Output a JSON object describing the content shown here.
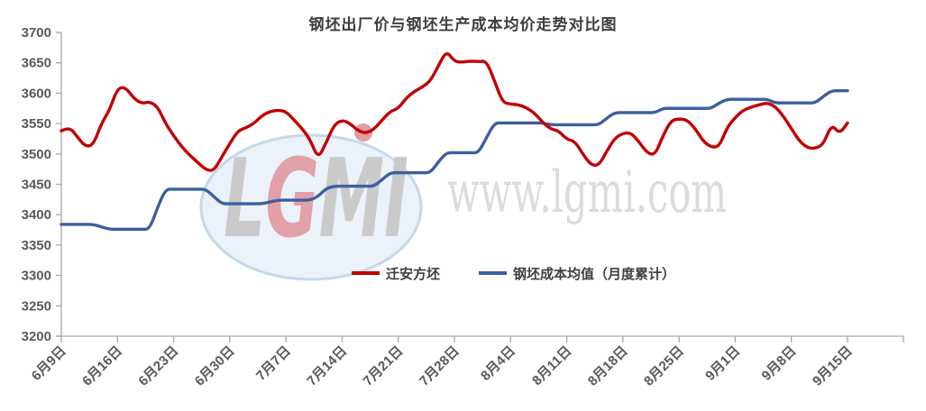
{
  "title": "钢坯出厂价与钢坯生产成本均价走势对比图",
  "watermark": {
    "url_text": "www.lgmi.com",
    "logo_letters": [
      {
        "ch": "L",
        "color": "#cacaca"
      },
      {
        "ch": "G",
        "color": "#e2a0a8"
      },
      {
        "ch": "M",
        "color": "#cacaca"
      },
      {
        "ch": "I",
        "color": "#cacaca"
      }
    ],
    "accent_dot_color": "#e59aa1",
    "ellipse_fill": "#ecf2f9",
    "ellipse_stroke": "#c6d8ec"
  },
  "legend": [
    {
      "label": "迁安方坯",
      "color": "#c00000"
    },
    {
      "label": "钢坯成本均值（月度累计）",
      "color": "#3c5fa0"
    }
  ],
  "colors": {
    "axis_line": "#a6a6a6",
    "axis_text": "#595959",
    "title_text": "#3d3d3d"
  },
  "chart_data": {
    "type": "line",
    "title": "钢坯出厂价与钢坯生产成本均价走势对比图",
    "xlabel": "",
    "ylabel": "",
    "ylim": [
      3200,
      3700
    ],
    "y_ticks": [
      3200,
      3250,
      3300,
      3350,
      3400,
      3450,
      3500,
      3550,
      3600,
      3650,
      3700
    ],
    "grid": false,
    "legend_position": "inside-bottom-center",
    "x_tick_labels": [
      "6月9日",
      "6月16日",
      "6月23日",
      "6月30日",
      "7月7日",
      "7月14日",
      "7月21日",
      "7月28日",
      "8月4日",
      "8月11日",
      "8月18日",
      "8月25日",
      "9月1日",
      "9月8日",
      "9月15日"
    ],
    "x": [
      "6月9日",
      "6月10日",
      "6月11日",
      "6月12日",
      "6月13日",
      "6月14日",
      "6月15日",
      "6月16日",
      "6月17日",
      "6月18日",
      "6月19日",
      "6月20日",
      "6月21日",
      "6月22日",
      "6月23日",
      "6月24日",
      "6月25日",
      "6月26日",
      "6月27日",
      "6月28日",
      "6月29日",
      "6月30日",
      "7月1日",
      "7月2日",
      "7月3日",
      "7月4日",
      "7月5日",
      "7月6日",
      "7月7日",
      "7月8日",
      "7月9日",
      "7月10日",
      "7月11日",
      "7月12日",
      "7月13日",
      "7月14日",
      "7月15日",
      "7月16日",
      "7月17日",
      "7月18日",
      "7月19日",
      "7月20日",
      "7月21日",
      "7月22日",
      "7月23日",
      "7月24日",
      "7月25日",
      "7月26日",
      "7月27日",
      "7月28日",
      "7月29日",
      "7月30日",
      "7月31日",
      "8月1日",
      "8月2日",
      "8月3日",
      "8月4日",
      "8月5日",
      "8月6日",
      "8月7日",
      "8月8日",
      "8月9日",
      "8月10日",
      "8月11日",
      "8月12日",
      "8月13日",
      "8月14日",
      "8月15日",
      "8月16日",
      "8月17日",
      "8月18日",
      "8月19日",
      "8月20日",
      "8月21日",
      "8月22日",
      "8月23日",
      "8月24日",
      "8月25日",
      "8月26日",
      "8月27日",
      "8月28日",
      "8月29日",
      "8月30日",
      "8月31日",
      "9月1日",
      "9月2日",
      "9月3日",
      "9月4日",
      "9月5日",
      "9月6日",
      "9月7日",
      "9月8日",
      "9月9日",
      "9月10日",
      "9月11日",
      "9月12日",
      "9月13日",
      "9月14日",
      "9月15日"
    ],
    "series": [
      {
        "name": "迁安方坯",
        "color": "#c00000",
        "values": [
          3538,
          3545,
          3528,
          3512,
          3515,
          3550,
          3572,
          3608,
          3610,
          3592,
          3583,
          3586,
          3578,
          3550,
          3530,
          3512,
          3498,
          3486,
          3474,
          3472,
          3495,
          3517,
          3538,
          3543,
          3550,
          3563,
          3570,
          3572,
          3570,
          3556,
          3542,
          3524,
          3492,
          3518,
          3548,
          3556,
          3550,
          3538,
          3534,
          3541,
          3556,
          3570,
          3575,
          3592,
          3603,
          3610,
          3620,
          3645,
          3670,
          3652,
          3651,
          3653,
          3652,
          3653,
          3620,
          3585,
          3582,
          3581,
          3576,
          3567,
          3552,
          3541,
          3538,
          3524,
          3521,
          3500,
          3482,
          3481,
          3505,
          3526,
          3534,
          3535,
          3520,
          3502,
          3498,
          3530,
          3555,
          3558,
          3556,
          3542,
          3521,
          3511,
          3512,
          3544,
          3560,
          3572,
          3577,
          3581,
          3584,
          3578,
          3562,
          3542,
          3521,
          3510,
          3509,
          3516,
          3549,
          3533,
          3551
        ]
      },
      {
        "name": "钢坯成本均值（月度累计）",
        "color": "#3c5fa0",
        "values": [
          3384,
          3384,
          3384,
          3384,
          3384,
          3380,
          3376,
          3376,
          3376,
          3376,
          3376,
          3376,
          3412,
          3442,
          3442,
          3442,
          3442,
          3442,
          3442,
          3430,
          3418,
          3418,
          3418,
          3418,
          3418,
          3418,
          3421,
          3424,
          3424,
          3424,
          3424,
          3424,
          3430,
          3443,
          3447,
          3447,
          3447,
          3447,
          3447,
          3447,
          3458,
          3469,
          3469,
          3469,
          3469,
          3469,
          3469,
          3487,
          3502,
          3502,
          3502,
          3502,
          3502,
          3527,
          3551,
          3551,
          3551,
          3551,
          3551,
          3551,
          3551,
          3548,
          3548,
          3548,
          3548,
          3548,
          3548,
          3548,
          3559,
          3568,
          3568,
          3568,
          3568,
          3568,
          3568,
          3575,
          3575,
          3575,
          3575,
          3575,
          3575,
          3575,
          3584,
          3590,
          3590,
          3590,
          3590,
          3590,
          3590,
          3584,
          3584,
          3584,
          3584,
          3584,
          3584,
          3595,
          3604,
          3604,
          3604
        ]
      }
    ]
  }
}
